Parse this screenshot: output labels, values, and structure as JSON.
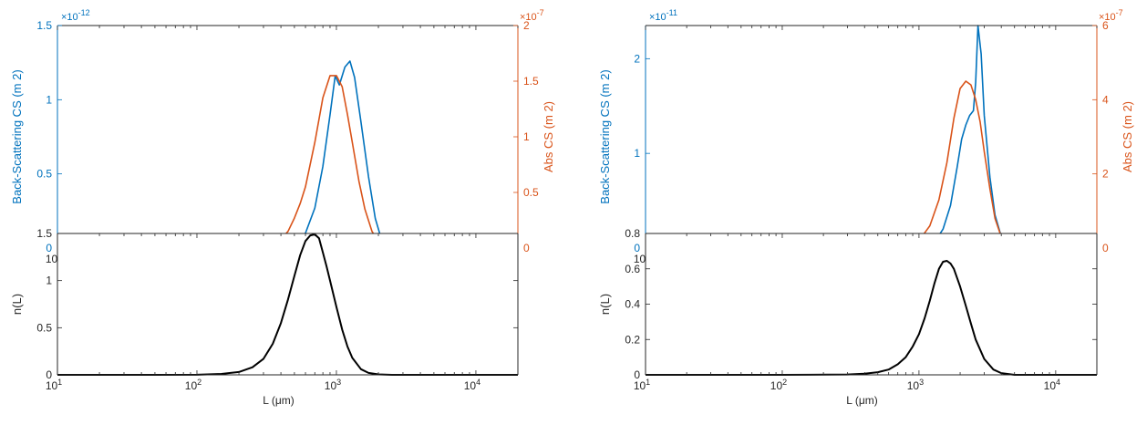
{
  "colors": {
    "blue": "#0072BD",
    "orange": "#D95319",
    "black": "#000000",
    "axis": "#262626"
  },
  "chart_data": [
    {
      "type": "line",
      "panel": "top-left",
      "xscale": "log",
      "xlim": [
        10,
        20000
      ],
      "xticks": [
        {
          "base": "10",
          "exp": "1",
          "v": 10
        },
        {
          "base": "10",
          "exp": "2",
          "v": 100
        },
        {
          "base": "10",
          "exp": "3",
          "v": 1000
        },
        {
          "base": "10",
          "exp": "4",
          "v": 10000
        }
      ],
      "xlabel": "",
      "yleft": {
        "label": "Back-Scattering CS (m  2)",
        "multiplier": "×10",
        "exponent": "-12",
        "lim": [
          0,
          1.5
        ],
        "ticks": [
          {
            "v": 0,
            "label": "0"
          },
          {
            "v": 0.5,
            "label": "0.5"
          },
          {
            "v": 1,
            "label": "1"
          },
          {
            "v": 1.5,
            "label": "1.5"
          }
        ]
      },
      "yright": {
        "label": "Abs CS (m 2)",
        "multiplier": "×10",
        "exponent": "-7",
        "lim": [
          0,
          2
        ],
        "ticks": [
          {
            "v": 0,
            "label": "0"
          },
          {
            "v": 0.5,
            "label": "0.5"
          },
          {
            "v": 1,
            "label": "1"
          },
          {
            "v": 1.5,
            "label": "1.5"
          },
          {
            "v": 2,
            "label": "2"
          }
        ]
      },
      "series": [
        {
          "axis": "left",
          "color": "#0072BD",
          "x": [
            10,
            100,
            350,
            420,
            500,
            600,
            700,
            800,
            900,
            980,
            1050,
            1150,
            1250,
            1350,
            1500,
            1700,
            1900,
            2100,
            2500,
            5000,
            20000
          ],
          "y": [
            0,
            0,
            0,
            0.005,
            0.03,
            0.1,
            0.27,
            0.55,
            0.9,
            1.16,
            1.1,
            1.22,
            1.26,
            1.15,
            0.85,
            0.48,
            0.2,
            0.06,
            0.005,
            0,
            0
          ]
        },
        {
          "axis": "right",
          "color": "#D95319",
          "x": [
            10,
            100,
            250,
            300,
            350,
            400,
            450,
            500,
            550,
            600,
            700,
            800,
            900,
            1000,
            1100,
            1200,
            1300,
            1450,
            1600,
            1800,
            2000,
            2300,
            3000,
            20000
          ],
          "y": [
            0,
            0,
            0,
            0.01,
            0.03,
            0.08,
            0.15,
            0.27,
            0.4,
            0.55,
            0.95,
            1.35,
            1.55,
            1.55,
            1.45,
            1.2,
            0.95,
            0.6,
            0.35,
            0.15,
            0.06,
            0.01,
            0,
            0
          ]
        }
      ]
    },
    {
      "type": "line",
      "panel": "top-right",
      "xscale": "log",
      "xlim": [
        10,
        20000
      ],
      "xticks": [
        {
          "base": "10",
          "exp": "1",
          "v": 10
        },
        {
          "base": "10",
          "exp": "2",
          "v": 100
        },
        {
          "base": "10",
          "exp": "3",
          "v": 1000
        },
        {
          "base": "10",
          "exp": "4",
          "v": 10000
        }
      ],
      "xlabel": "",
      "yleft": {
        "label": "Back-Scattering CS (m  2)",
        "multiplier": "×10",
        "exponent": "-11",
        "lim": [
          0,
          2.35
        ],
        "ticks": [
          {
            "v": 0,
            "label": "0"
          },
          {
            "v": 1,
            "label": "1"
          },
          {
            "v": 2,
            "label": "2"
          }
        ]
      },
      "yright": {
        "label": "Abs CS (m 2)",
        "multiplier": "×10",
        "exponent": "-7",
        "lim": [
          0,
          6
        ],
        "ticks": [
          {
            "v": 0,
            "label": "0"
          },
          {
            "v": 2,
            "label": "2"
          },
          {
            "v": 4,
            "label": "4"
          },
          {
            "v": 6,
            "label": "6"
          }
        ]
      },
      "series": [
        {
          "axis": "left",
          "color": "#0072BD",
          "x": [
            10,
            100,
            1000,
            1100,
            1200,
            1350,
            1500,
            1700,
            1900,
            2050,
            2200,
            2350,
            2500,
            2600,
            2700,
            2850,
            3000,
            3300,
            3600,
            4000,
            4500,
            5200,
            20000
          ],
          "y": [
            0,
            0,
            0,
            0.01,
            0.04,
            0.1,
            0.2,
            0.45,
            0.85,
            1.15,
            1.3,
            1.4,
            1.45,
            1.75,
            2.35,
            2.05,
            1.4,
            0.75,
            0.35,
            0.12,
            0.03,
            0,
            0
          ]
        },
        {
          "axis": "right",
          "color": "#D95319",
          "x": [
            10,
            100,
            700,
            800,
            900,
            1000,
            1200,
            1400,
            1600,
            1800,
            2000,
            2200,
            2400,
            2600,
            2800,
            3000,
            3300,
            3600,
            4000,
            4500,
            5000,
            20000
          ],
          "y": [
            0,
            0,
            0.01,
            0.03,
            0.08,
            0.2,
            0.6,
            1.3,
            2.3,
            3.5,
            4.3,
            4.5,
            4.4,
            4.0,
            3.4,
            2.6,
            1.6,
            0.8,
            0.3,
            0.08,
            0.01,
            0
          ]
        }
      ]
    },
    {
      "type": "line",
      "panel": "bottom-left",
      "xscale": "log",
      "xlim": [
        10,
        20000
      ],
      "xticks": [
        {
          "base": "10",
          "exp": "1",
          "v": 10
        },
        {
          "base": "10",
          "exp": "2",
          "v": 100
        },
        {
          "base": "10",
          "exp": "3",
          "v": 1000
        },
        {
          "base": "10",
          "exp": "4",
          "v": 10000
        }
      ],
      "xlabel": "L (μm)",
      "yleft": {
        "label": "n(L)",
        "lim": [
          0,
          1.5
        ],
        "ticks": [
          {
            "v": 0,
            "label": "0"
          },
          {
            "v": 0.5,
            "label": "0.5"
          },
          {
            "v": 1,
            "label": "1"
          },
          {
            "v": 1.5,
            "label": "1.5"
          }
        ]
      },
      "series": [
        {
          "axis": "left",
          "color": "#000000",
          "x": [
            10,
            50,
            100,
            150,
            200,
            250,
            300,
            350,
            400,
            450,
            500,
            550,
            600,
            650,
            700,
            750,
            800,
            850,
            900,
            1000,
            1100,
            1200,
            1300,
            1500,
            1700,
            2000,
            2500,
            5000,
            20000
          ],
          "y": [
            0,
            0,
            0.001,
            0.01,
            0.03,
            0.08,
            0.17,
            0.33,
            0.55,
            0.8,
            1.05,
            1.27,
            1.42,
            1.48,
            1.49,
            1.45,
            1.3,
            1.15,
            1.0,
            0.72,
            0.48,
            0.3,
            0.18,
            0.06,
            0.02,
            0.005,
            0,
            0,
            0
          ]
        }
      ]
    },
    {
      "type": "line",
      "panel": "bottom-right",
      "xscale": "log",
      "xlim": [
        10,
        20000
      ],
      "xticks": [
        {
          "base": "10",
          "exp": "1",
          "v": 10
        },
        {
          "base": "10",
          "exp": "2",
          "v": 100
        },
        {
          "base": "10",
          "exp": "3",
          "v": 1000
        },
        {
          "base": "10",
          "exp": "4",
          "v": 10000
        }
      ],
      "xlabel": "L (μm)",
      "yleft": {
        "label": "n(L)",
        "lim": [
          0,
          0.8
        ],
        "ticks": [
          {
            "v": 0,
            "label": "0"
          },
          {
            "v": 0.2,
            "label": "0.2"
          },
          {
            "v": 0.4,
            "label": "0.4"
          },
          {
            "v": 0.6,
            "label": "0.6"
          },
          {
            "v": 0.8,
            "label": "0.8"
          }
        ]
      },
      "series": [
        {
          "axis": "left",
          "color": "#000000",
          "x": [
            10,
            100,
            300,
            400,
            500,
            600,
            700,
            800,
            900,
            1000,
            1100,
            1200,
            1300,
            1400,
            1500,
            1600,
            1700,
            1800,
            2000,
            2200,
            2400,
            2600,
            3000,
            3500,
            4000,
            5000,
            20000
          ],
          "y": [
            0,
            0,
            0.002,
            0.006,
            0.015,
            0.03,
            0.06,
            0.1,
            0.16,
            0.23,
            0.32,
            0.42,
            0.52,
            0.6,
            0.64,
            0.645,
            0.63,
            0.6,
            0.5,
            0.39,
            0.29,
            0.2,
            0.09,
            0.03,
            0.01,
            0,
            0
          ]
        }
      ]
    }
  ]
}
